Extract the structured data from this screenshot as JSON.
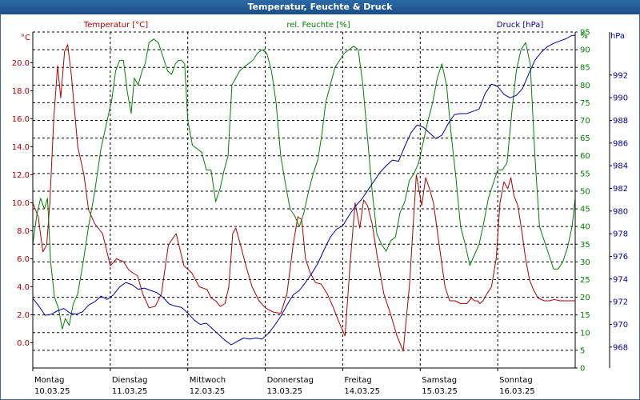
{
  "title": "Temperatur, Feuchte & Druck",
  "colors": {
    "temperature": "#b00000",
    "humidity": "#008000",
    "pressure": "#0000a0",
    "grid": "#000000"
  },
  "chart_data": {
    "type": "line",
    "title": "Temperatur, Feuchte & Druck",
    "grid": true,
    "x_labels": [
      {
        "day": "Montag",
        "date": "10.03.25"
      },
      {
        "day": "Dienstag",
        "date": "11.03.25"
      },
      {
        "day": "Mittwoch",
        "date": "12.03.25"
      },
      {
        "day": "Donnerstag",
        "date": "13.03.25"
      },
      {
        "day": "Freitag",
        "date": "14.03.25"
      },
      {
        "day": "Samstag",
        "date": "15.03.25"
      },
      {
        "day": "Sonntag",
        "date": "16.03.25"
      }
    ],
    "x_range": [
      0,
      7
    ],
    "axes": {
      "temperature": {
        "label": "Temperatur [°C]",
        "unit": "°C",
        "range": [
          -1.8,
          22.2
        ],
        "ticks": [
          0.0,
          2.0,
          4.0,
          6.0,
          8.0,
          10.0,
          12.0,
          14.0,
          16.0,
          18.0,
          20.0
        ]
      },
      "humidity": {
        "label": "rel. Feuchte [%]",
        "unit": "%",
        "range": [
          0,
          95
        ],
        "ticks": [
          0,
          5,
          10,
          15,
          20,
          25,
          30,
          35,
          40,
          45,
          50,
          55,
          60,
          65,
          70,
          75,
          80,
          85,
          90,
          95
        ]
      },
      "pressure": {
        "label": "Druck [hPa]",
        "unit": "hPa",
        "range": [
          966.15,
          995.8
        ],
        "ticks": [
          968,
          970,
          972,
          974,
          976,
          978,
          980,
          982,
          984,
          986,
          988,
          990,
          992
        ]
      }
    },
    "series": [
      {
        "name": "Temperatur [°C]",
        "axis": "temperature",
        "x": [
          0.0,
          0.07,
          0.13,
          0.18,
          0.22,
          0.27,
          0.32,
          0.36,
          0.41,
          0.45,
          0.5,
          0.54,
          0.58,
          0.62,
          0.66,
          0.72,
          0.8,
          0.9,
          1.0,
          1.08,
          1.17,
          1.24,
          1.29,
          1.35,
          1.42,
          1.5,
          1.58,
          1.66,
          1.75,
          1.85,
          1.95,
          2.05,
          2.15,
          2.25,
          2.3,
          2.36,
          2.42,
          2.48,
          2.53,
          2.58,
          2.62,
          2.68,
          2.75,
          2.83,
          2.92,
          3.0,
          3.1,
          3.2,
          3.28,
          3.36,
          3.42,
          3.47,
          3.52,
          3.58,
          3.65,
          3.72,
          3.8,
          3.88,
          3.95,
          4.03,
          4.1,
          4.16,
          4.22,
          4.27,
          4.32,
          4.38,
          4.45,
          4.53,
          4.62,
          4.7,
          4.78,
          4.86,
          4.95,
          5.02,
          5.07,
          5.12,
          5.17,
          5.22,
          5.27,
          5.32,
          5.38,
          5.45,
          5.52,
          5.6,
          5.66,
          5.7,
          5.74,
          5.77,
          5.81,
          5.86,
          5.92,
          5.98,
          6.03,
          6.08,
          6.13,
          6.17,
          6.21,
          6.26,
          6.31,
          6.36,
          6.41,
          6.46,
          6.52,
          6.6,
          6.67,
          6.73,
          6.8,
          6.87,
          6.95,
          7.0
        ],
        "values": [
          10.0,
          9.0,
          6.5,
          7.0,
          10.0,
          16.0,
          19.8,
          17.5,
          20.8,
          21.3,
          19.0,
          16.5,
          14.0,
          13.0,
          12.0,
          9.5,
          8.5,
          7.8,
          5.5,
          6.0,
          5.8,
          5.2,
          5.0,
          4.8,
          3.5,
          2.5,
          2.6,
          3.5,
          7.0,
          7.8,
          5.5,
          5.0,
          4.0,
          3.8,
          3.2,
          3.0,
          2.6,
          2.8,
          4.0,
          7.8,
          8.2,
          7.0,
          5.5,
          4.0,
          3.0,
          2.5,
          2.2,
          2.1,
          3.5,
          7.0,
          9.0,
          8.8,
          6.0,
          5.0,
          4.3,
          4.2,
          3.5,
          2.5,
          1.5,
          0.5,
          6.0,
          10.0,
          8.2,
          10.2,
          9.8,
          8.5,
          6.0,
          3.5,
          2.0,
          0.5,
          -0.6,
          4.0,
          12.0,
          9.8,
          11.8,
          11.0,
          10.0,
          8.0,
          6.0,
          4.0,
          3.0,
          3.0,
          2.8,
          2.8,
          3.2,
          3.0,
          3.0,
          2.8,
          3.0,
          3.5,
          4.0,
          6.0,
          10.0,
          11.5,
          11.0,
          11.8,
          10.5,
          9.8,
          8.0,
          6.0,
          4.5,
          3.8,
          3.2,
          3.0,
          3.0,
          3.1,
          3.0,
          3.0,
          3.0,
          3.0
        ]
      },
      {
        "name": "rel. Feuchte [%]",
        "axis": "humidity",
        "x": [
          0.0,
          0.05,
          0.1,
          0.15,
          0.19,
          0.23,
          0.28,
          0.33,
          0.38,
          0.42,
          0.47,
          0.52,
          0.58,
          0.65,
          0.72,
          0.8,
          0.88,
          0.96,
          1.02,
          1.07,
          1.12,
          1.17,
          1.22,
          1.27,
          1.31,
          1.36,
          1.41,
          1.45,
          1.5,
          1.56,
          1.62,
          1.68,
          1.74,
          1.79,
          1.84,
          1.88,
          1.92,
          1.96,
          2.0,
          2.06,
          2.12,
          2.18,
          2.24,
          2.3,
          2.36,
          2.42,
          2.47,
          2.52,
          2.57,
          2.62,
          2.67,
          2.72,
          2.78,
          2.84,
          2.9,
          2.96,
          3.02,
          3.08,
          3.14,
          3.2,
          3.26,
          3.32,
          3.38,
          3.44,
          3.5,
          3.56,
          3.62,
          3.68,
          3.73,
          3.78,
          3.84,
          3.9,
          3.96,
          4.02,
          4.08,
          4.14,
          4.2,
          4.26,
          4.32,
          4.38,
          4.44,
          4.5,
          4.56,
          4.62,
          4.68,
          4.74,
          4.8,
          4.86,
          4.92,
          4.98,
          5.04,
          5.1,
          5.16,
          5.22,
          5.28,
          5.34,
          5.4,
          5.46,
          5.52,
          5.58,
          5.64,
          5.7,
          5.76,
          5.82,
          5.88,
          5.94,
          6.0,
          6.06,
          6.12,
          6.18,
          6.24,
          6.3,
          6.36,
          6.42,
          6.48,
          6.54,
          6.6,
          6.66,
          6.72,
          6.78,
          6.84,
          6.9,
          6.96,
          7.0
        ],
        "values": [
          35.0,
          43.0,
          48.0,
          45.0,
          48.0,
          30.0,
          20.0,
          17.0,
          11.0,
          14.0,
          12.0,
          18.0,
          21.0,
          30.0,
          40.0,
          50.0,
          62.0,
          70.0,
          76.0,
          84.0,
          87.0,
          87.0,
          78.0,
          72.0,
          82.0,
          80.0,
          84.0,
          86.0,
          92.0,
          93.0,
          92.0,
          88.0,
          84.0,
          83.0,
          86.0,
          87.0,
          87.0,
          86.0,
          70.0,
          63.0,
          62.0,
          61.0,
          56.0,
          56.0,
          47.0,
          51.0,
          56.0,
          60.0,
          80.0,
          82.0,
          84.0,
          85.0,
          86.0,
          87.0,
          89.0,
          90.0,
          89.0,
          84.0,
          75.0,
          60.0,
          52.0,
          45.0,
          43.0,
          40.0,
          44.0,
          50.0,
          55.0,
          59.0,
          66.0,
          75.0,
          80.0,
          85.0,
          87.0,
          89.0,
          90.0,
          91.0,
          90.0,
          80.0,
          65.0,
          50.0,
          38.0,
          35.0,
          33.0,
          36.0,
          37.0,
          44.0,
          47.0,
          53.0,
          55.0,
          58.0,
          64.0,
          70.0,
          75.0,
          82.0,
          86.0,
          80.0,
          66.0,
          54.0,
          40.0,
          35.0,
          29.0,
          32.0,
          35.0,
          41.0,
          48.0,
          52.0,
          56.0,
          56.0,
          58.0,
          72.0,
          84.0,
          90.0,
          92.0,
          86.0,
          60.0,
          40.0,
          36.0,
          32.0,
          28.0,
          28.0,
          30.0,
          34.0,
          40.0,
          48.0
        ]
      },
      {
        "name": "Druck [hPa]",
        "axis": "pressure",
        "x": [
          0.0,
          0.08,
          0.16,
          0.24,
          0.32,
          0.4,
          0.48,
          0.56,
          0.64,
          0.72,
          0.8,
          0.88,
          0.96,
          1.04,
          1.12,
          1.2,
          1.28,
          1.36,
          1.44,
          1.52,
          1.6,
          1.68,
          1.76,
          1.84,
          1.92,
          2.0,
          2.08,
          2.16,
          2.24,
          2.32,
          2.4,
          2.48,
          2.56,
          2.64,
          2.72,
          2.8,
          2.88,
          2.96,
          3.04,
          3.12,
          3.2,
          3.28,
          3.36,
          3.44,
          3.52,
          3.6,
          3.68,
          3.76,
          3.84,
          3.92,
          4.0,
          4.08,
          4.16,
          4.24,
          4.32,
          4.4,
          4.48,
          4.56,
          4.64,
          4.72,
          4.8,
          4.88,
          4.96,
          5.04,
          5.12,
          5.2,
          5.28,
          5.36,
          5.44,
          5.52,
          5.6,
          5.68,
          5.76,
          5.84,
          5.92,
          6.0,
          6.08,
          6.16,
          6.24,
          6.32,
          6.4,
          6.48,
          6.56,
          6.64,
          6.72,
          6.8,
          6.88,
          6.96,
          7.0
        ],
        "values": [
          972.3,
          971.6,
          970.8,
          970.9,
          971.2,
          971.4,
          971.0,
          970.9,
          971.1,
          971.7,
          972.0,
          972.5,
          972.2,
          972.6,
          973.3,
          973.7,
          973.5,
          973.1,
          973.2,
          973.0,
          972.8,
          972.4,
          971.8,
          971.6,
          971.5,
          971.0,
          970.4,
          970.0,
          970.1,
          969.6,
          969.1,
          968.6,
          968.2,
          968.5,
          968.8,
          968.7,
          968.8,
          968.7,
          969.2,
          969.9,
          970.7,
          971.7,
          972.6,
          973.0,
          973.7,
          974.5,
          975.4,
          976.6,
          977.7,
          978.4,
          978.7,
          979.6,
          980.4,
          981.0,
          981.8,
          982.6,
          983.4,
          984.0,
          984.5,
          984.4,
          985.7,
          986.9,
          987.6,
          987.4,
          986.9,
          986.4,
          986.7,
          987.7,
          988.5,
          988.6,
          988.6,
          988.8,
          989.0,
          990.4,
          991.2,
          991.0,
          990.3,
          990.0,
          990.2,
          990.8,
          992.1,
          993.3,
          994.0,
          994.5,
          994.8,
          995.0,
          995.2,
          995.5,
          995.5
        ]
      }
    ]
  }
}
